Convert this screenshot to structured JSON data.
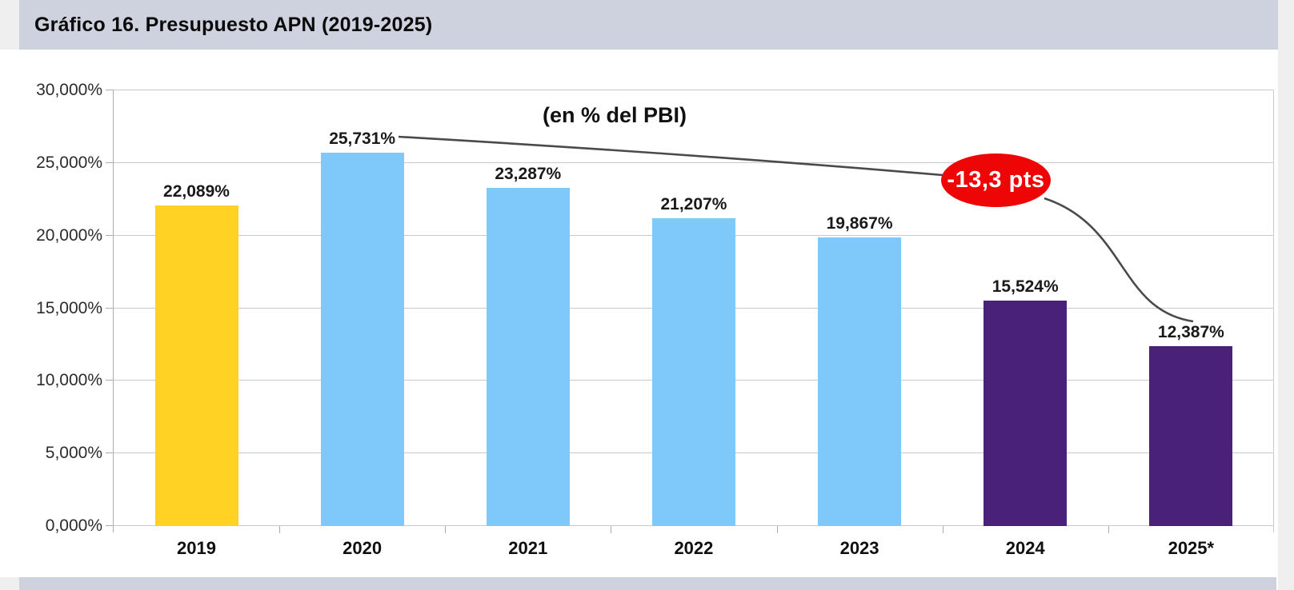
{
  "colors": {
    "band": "#CDD2DE",
    "page_edge": "#EFEFEF",
    "grid": "#C9C9C9",
    "axis": "#ACACAC",
    "text_dark": "#1A1A1A",
    "line": "#4A4A4A",
    "bubble_red": "#EE0505"
  },
  "header": {
    "title": "Gráfico 16. Presupuesto APN (2019-2025)"
  },
  "chart_data": {
    "type": "bar",
    "title": "Gráfico 16. Presupuesto APN (2019-2025)",
    "subtitle": "(en % del PBI)",
    "xlabel": "",
    "ylabel": "",
    "categories": [
      "2019",
      "2020",
      "2021",
      "2022",
      "2023",
      "2024",
      "2025*"
    ],
    "values": [
      22.089,
      25.731,
      23.287,
      21.207,
      19.867,
      15.524,
      12.387
    ],
    "value_labels": [
      "22,089%",
      "25,731%",
      "23,287%",
      "21,207%",
      "19,867%",
      "15,524%",
      "12,387%"
    ],
    "bar_colors": [
      "#FFD224",
      "#7FC8FA",
      "#7FC8FA",
      "#7FC8FA",
      "#7FC8FA",
      "#4A2178",
      "#4A2178"
    ],
    "ylim": [
      0,
      30
    ],
    "ytick_step": 5,
    "ytick_labels": [
      "0,000%",
      "5,000%",
      "10,000%",
      "15,000%",
      "20,000%",
      "25,000%",
      "30,000%"
    ],
    "grid": true,
    "legend": null,
    "annotation": {
      "label": "-13,3 pts",
      "bubble_color": "#EE0505",
      "text_color": "#FFFFFF"
    }
  }
}
